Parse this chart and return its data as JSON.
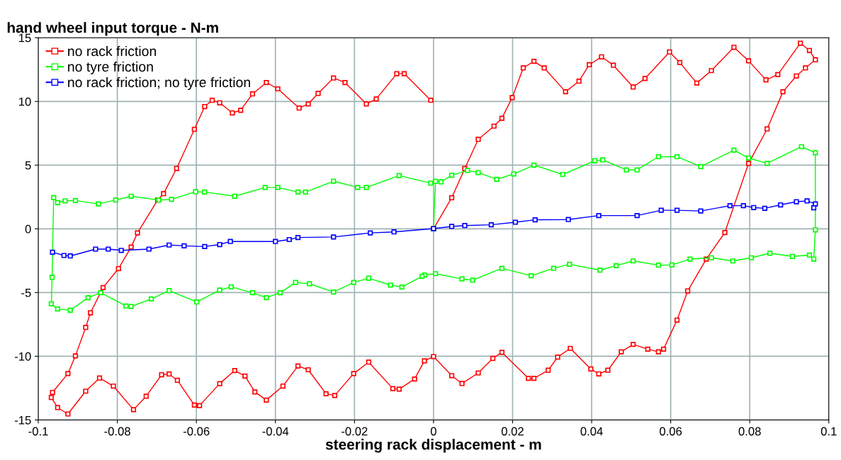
{
  "chart_data": {
    "type": "line",
    "ylabel": "hand wheel input torque - N-m",
    "xlabel": "steering rack displacement - m",
    "xlim": [
      -0.1,
      0.1
    ],
    "xticks": [
      {
        "value": -0.1,
        "label": "-0.1"
      },
      {
        "value": -0.08,
        "label": "-0.08"
      },
      {
        "value": -0.06,
        "label": "-0.06"
      },
      {
        "value": -0.04,
        "label": "-0.04"
      },
      {
        "value": -0.02,
        "label": "-0.02"
      },
      0,
      0.02,
      0.04,
      0.06,
      0.08,
      0.1
    ],
    "ylim": [
      -15,
      15
    ],
    "yticks": [
      {
        "value": -15,
        "label": "-15"
      },
      {
        "value": -10,
        "label": "-10"
      },
      {
        "value": -5,
        "label": "-5"
      },
      0,
      5,
      10,
      15
    ],
    "grid": true,
    "legend": "top left",
    "marker": "square",
    "line_style": "solid",
    "series": [
      {
        "name": "no rack friction",
        "color": "#ff0000",
        "x": [
          0.0,
          0.0046,
          0.0079,
          0.0113,
          0.0153,
          0.0173,
          0.0199,
          0.0227,
          0.0254,
          0.028,
          0.0334,
          0.0368,
          0.0394,
          0.0425,
          0.0455,
          0.0505,
          0.0535,
          0.0597,
          0.0623,
          0.0666,
          0.0703,
          0.076,
          0.0797,
          0.0841,
          0.0871,
          0.0928,
          0.0951,
          0.0966,
          0.0941,
          0.0918,
          0.0884,
          0.0844,
          0.0797,
          0.0737,
          0.069,
          0.0643,
          0.0616,
          0.0582,
          0.0569,
          0.0542,
          0.0505,
          0.0475,
          0.0441,
          0.0418,
          0.0398,
          0.0346,
          0.0314,
          0.029,
          0.0254,
          0.024,
          0.0173,
          0.015,
          0.0113,
          0.0072,
          0.0046,
          0.0,
          -0.0023,
          -0.0048,
          -0.0087,
          -0.0103,
          -0.0164,
          -0.0202,
          -0.025,
          -0.0272,
          -0.0317,
          -0.0343,
          -0.0381,
          -0.0423,
          -0.0452,
          -0.0477,
          -0.0503,
          -0.0541,
          -0.0592,
          -0.0605,
          -0.0648,
          -0.0669,
          -0.0688,
          -0.0727,
          -0.0759,
          -0.081,
          -0.0845,
          -0.088,
          -0.0925,
          -0.0951,
          -0.0967,
          -0.0964,
          -0.0925,
          -0.0906,
          -0.088,
          -0.0868,
          -0.0836,
          -0.0797,
          -0.0765,
          -0.0749,
          -0.0698,
          -0.0683,
          -0.065,
          -0.0605,
          -0.0579,
          -0.056,
          -0.0541,
          -0.0509,
          -0.0488,
          -0.0458,
          -0.0423,
          -0.0394,
          -0.034,
          -0.0317,
          -0.0292,
          -0.0253,
          -0.0224,
          -0.017,
          -0.0145,
          -0.0093,
          -0.0074,
          -0.0007
        ],
        "values": [
          0.0,
          2.44,
          4.73,
          7.02,
          8.06,
          8.68,
          10.3,
          12.63,
          13.15,
          12.63,
          10.76,
          11.59,
          12.88,
          13.5,
          12.84,
          11.13,
          11.8,
          13.88,
          13.05,
          11.44,
          12.42,
          14.25,
          13.19,
          11.69,
          12.11,
          14.57,
          14.0,
          13.27,
          12.63,
          12.0,
          10.76,
          7.84,
          5.14,
          -0.29,
          -2.37,
          -4.87,
          -7.16,
          -9.44,
          -9.65,
          -9.44,
          -9.07,
          -9.65,
          -11.1,
          -11.38,
          -11.0,
          -9.38,
          -10.07,
          -11.1,
          -11.73,
          -11.73,
          -9.69,
          -10.17,
          -11.31,
          -12.14,
          -11.52,
          -10.02,
          -10.36,
          -11.79,
          -12.58,
          -12.54,
          -10.46,
          -11.36,
          -13.08,
          -12.94,
          -11.06,
          -10.76,
          -12.34,
          -13.44,
          -12.8,
          -11.55,
          -11.12,
          -12.15,
          -13.87,
          -13.83,
          -11.89,
          -11.39,
          -11.45,
          -13.14,
          -14.19,
          -12.34,
          -11.71,
          -12.74,
          -14.53,
          -14.03,
          -13.24,
          -12.84,
          -11.36,
          -9.97,
          -7.74,
          -6.59,
          -4.61,
          -3.12,
          -1.43,
          -0.32,
          2.26,
          2.76,
          4.74,
          7.81,
          9.6,
          10.09,
          9.89,
          9.1,
          9.3,
          10.59,
          11.48,
          10.99,
          9.48,
          9.8,
          10.63,
          11.84,
          11.48,
          9.8,
          10.19,
          12.18,
          12.18,
          10.09
        ]
      },
      {
        "name": "no tyre friction",
        "color": "#00ff00",
        "x": [
          0.0,
          0.0005,
          0.0019,
          0.0046,
          0.0086,
          0.0113,
          0.016,
          0.0203,
          0.0254,
          0.0327,
          0.0408,
          0.0428,
          0.0488,
          0.0515,
          0.0569,
          0.0616,
          0.0676,
          0.076,
          0.0797,
          0.0844,
          0.0931,
          0.0966,
          0.0966,
          0.0962,
          0.0951,
          0.0908,
          0.0851,
          0.0804,
          0.0757,
          0.0703,
          0.0649,
          0.0603,
          0.0569,
          0.0505,
          0.0462,
          0.0421,
          0.0344,
          0.0304,
          0.0247,
          0.0173,
          0.0099,
          0.0072,
          0.0005,
          -0.0022,
          -0.0029,
          -0.008,
          -0.0109,
          -0.0164,
          -0.0202,
          -0.0253,
          -0.0314,
          -0.0349,
          -0.0388,
          -0.0423,
          -0.0458,
          -0.0512,
          -0.0541,
          -0.0599,
          -0.0669,
          -0.0714,
          -0.0765,
          -0.0778,
          -0.0842,
          -0.0874,
          -0.0919,
          -0.0951,
          -0.0967,
          -0.0965,
          -0.0961,
          -0.0951,
          -0.0932,
          -0.0906,
          -0.0848,
          -0.0804,
          -0.0765,
          -0.0695,
          -0.0663,
          -0.0602,
          -0.0579,
          -0.0503,
          -0.0426,
          -0.0394,
          -0.0343,
          -0.0324,
          -0.0253,
          -0.0192,
          -0.017,
          -0.0087,
          -0.0007
        ],
        "values": [
          0.0,
          3.73,
          3.69,
          4.21,
          4.58,
          4.42,
          3.89,
          4.31,
          5.0,
          4.27,
          5.35,
          5.41,
          4.62,
          4.62,
          5.66,
          5.66,
          4.89,
          6.18,
          5.56,
          5.14,
          6.45,
          5.97,
          -0.08,
          -2.37,
          -2.06,
          -2.16,
          -1.91,
          -2.27,
          -2.52,
          -2.27,
          -2.37,
          -2.83,
          -2.85,
          -2.52,
          -2.89,
          -3.24,
          -2.78,
          -3.1,
          -3.68,
          -3.1,
          -4.03,
          -3.93,
          -3.52,
          -3.62,
          -3.72,
          -4.57,
          -4.41,
          -3.87,
          -4.21,
          -4.96,
          -4.31,
          -4.21,
          -5.01,
          -5.4,
          -5.01,
          -4.55,
          -4.81,
          -5.74,
          -4.85,
          -5.5,
          -6.09,
          -6.06,
          -5.01,
          -5.4,
          -6.39,
          -6.29,
          -5.89,
          -3.81,
          2.46,
          2.06,
          2.2,
          2.22,
          1.96,
          2.26,
          2.56,
          2.26,
          2.32,
          2.91,
          2.89,
          2.56,
          3.25,
          3.25,
          2.89,
          2.89,
          3.74,
          3.25,
          3.25,
          4.18,
          3.59
        ]
      },
      {
        "name": "no rack friction; no tyre friction",
        "color": "#0000ff",
        "x": [
          -0.0964,
          -0.0935,
          -0.0919,
          -0.0855,
          -0.0823,
          -0.079,
          -0.072,
          -0.0669,
          -0.0631,
          -0.0579,
          -0.0541,
          -0.0514,
          -0.04,
          -0.0365,
          -0.0343,
          -0.0253,
          -0.016,
          -0.01,
          0.0,
          0.0046,
          0.0079,
          0.0146,
          0.0207,
          0.0257,
          0.0341,
          0.0418,
          0.0515,
          0.0576,
          0.0616,
          0.0676,
          0.075,
          0.0784,
          0.081,
          0.0838,
          0.0878,
          0.0918,
          0.0945,
          0.0966,
          0.0962
        ],
        "values": [
          -1.83,
          -2.09,
          -2.13,
          -1.59,
          -1.59,
          -1.69,
          -1.59,
          -1.27,
          -1.33,
          -1.39,
          -1.23,
          -0.99,
          -0.99,
          -0.84,
          -0.68,
          -0.64,
          -0.32,
          -0.24,
          0.02,
          0.19,
          0.26,
          0.32,
          0.52,
          0.71,
          0.73,
          1.04,
          1.04,
          1.46,
          1.46,
          1.4,
          1.82,
          1.82,
          1.67,
          1.61,
          1.88,
          2.13,
          2.19,
          1.96,
          1.65
        ]
      }
    ]
  }
}
